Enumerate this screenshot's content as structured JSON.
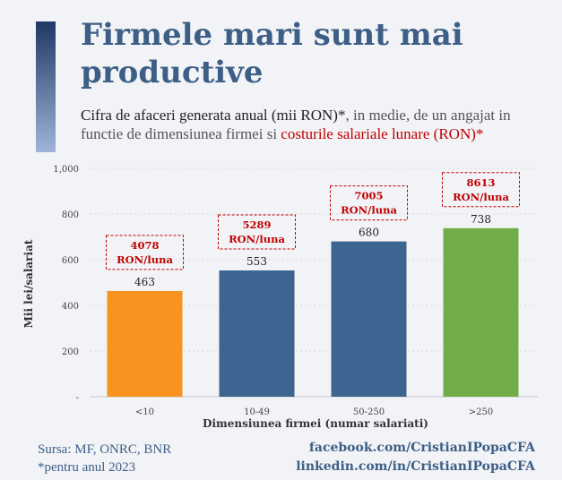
{
  "header": {
    "title": "Firmele mari sunt mai productive",
    "subtitle_part1": "Cifra de afaceri generata anual (mii RON)*",
    "subtitle_part2": ", in medie, de un angajat in functie de dimensiunea firmei si ",
    "subtitle_part3": "costurile salariale lunare (RON)*"
  },
  "chart_data": {
    "type": "bar",
    "categories": [
      "<10",
      "10-49",
      "50-250",
      ">250"
    ],
    "values": [
      463,
      553,
      680,
      738
    ],
    "annotations": [
      {
        "value": "4078",
        "unit": "RON/luna"
      },
      {
        "value": "5289",
        "unit": "RON/luna"
      },
      {
        "value": "7005",
        "unit": "RON/luna"
      },
      {
        "value": "8613",
        "unit": "RON/luna"
      }
    ],
    "xlabel": "Dimensiunea firmei (numar salariati)",
    "ylabel": "Mii lei/salariat",
    "ylim": [
      0,
      1000
    ],
    "yticks": [
      0,
      200,
      400,
      600,
      800,
      1000
    ],
    "ytick_labels": [
      "-",
      "200",
      "400",
      "600",
      "800",
      "1,000"
    ],
    "grid": true,
    "colors": [
      "#f7931e",
      "#3d6591",
      "#3d6591",
      "#70ad47"
    ],
    "annotation_color": "#c00000"
  },
  "footer": {
    "source": "Sursa: MF, ONRC, BNR",
    "note": "*pentru anul 2023",
    "facebook": "facebook.com/CristianIPopaCFA",
    "linkedin": "linkedin.com/in/CristianIPopaCFA"
  }
}
